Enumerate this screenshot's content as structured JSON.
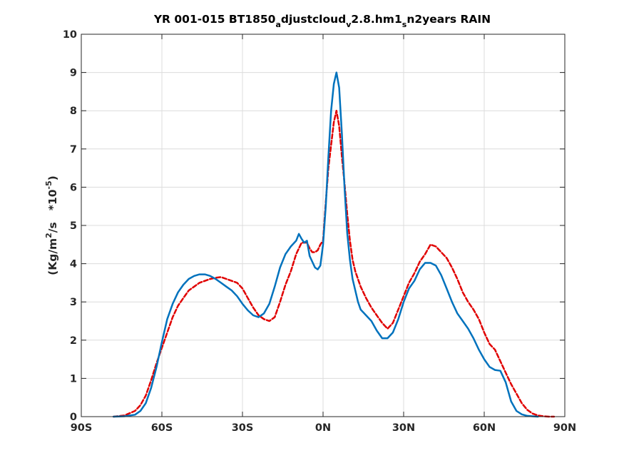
{
  "chart_data": {
    "type": "line",
    "title_parts": {
      "p1": "YR 001-015 BT1850",
      "s1": "a",
      "p2": "djustcloud",
      "s2": "v",
      "p3": "2.8.hm1",
      "s3": "s",
      "p4": "n2years RAIN"
    },
    "ylabel_parts": {
      "p1": "(Kg/m",
      "sup1": "2",
      "p2": "/s   *10",
      "sup2": "-5",
      "p3": ")"
    },
    "xlim": [
      -90,
      90
    ],
    "ylim": [
      0,
      10
    ],
    "grid": true,
    "xticks": [
      -90,
      -60,
      -30,
      0,
      30,
      60,
      90
    ],
    "xtick_labels": [
      "90S",
      "60S",
      "30S",
      "0N",
      "30N",
      "60N",
      "90N"
    ],
    "yticks": [
      0,
      1,
      2,
      3,
      4,
      5,
      6,
      7,
      8,
      9,
      10
    ],
    "ytick_labels": [
      "0",
      "1",
      "2",
      "3",
      "4",
      "5",
      "6",
      "7",
      "8",
      "9",
      "10"
    ],
    "colors": {
      "series1": "#0072BD",
      "series2": "#E00000"
    },
    "series": [
      {
        "line_style": "solid",
        "color": "#0072BD",
        "x": [
          -78,
          -74,
          -70,
          -68,
          -66,
          -64,
          -62,
          -60,
          -58,
          -56,
          -54,
          -52,
          -50,
          -48,
          -46,
          -44,
          -42,
          -40,
          -38,
          -36,
          -34,
          -32,
          -30,
          -28,
          -26,
          -24,
          -22,
          -20,
          -18,
          -16,
          -14,
          -12,
          -10,
          -9,
          -8,
          -7,
          -6,
          -5,
          -4,
          -3,
          -2,
          -1,
          0,
          1,
          2,
          3,
          4,
          5,
          6,
          7,
          8,
          9,
          10,
          11,
          12,
          13,
          14,
          16,
          18,
          20,
          22,
          24,
          26,
          28,
          30,
          32,
          34,
          36,
          38,
          40,
          42,
          44,
          46,
          48,
          50,
          52,
          54,
          56,
          58,
          60,
          62,
          64,
          66,
          68,
          70,
          72,
          74,
          76,
          78,
          80
        ],
        "y": [
          0,
          0.01,
          0.05,
          0.15,
          0.35,
          0.75,
          1.3,
          1.95,
          2.55,
          2.95,
          3.25,
          3.45,
          3.6,
          3.68,
          3.72,
          3.72,
          3.68,
          3.6,
          3.5,
          3.4,
          3.3,
          3.15,
          2.95,
          2.78,
          2.65,
          2.6,
          2.7,
          2.95,
          3.4,
          3.9,
          4.25,
          4.45,
          4.6,
          4.78,
          4.65,
          4.55,
          4.6,
          4.2,
          4.05,
          3.9,
          3.85,
          3.95,
          4.5,
          5.5,
          6.8,
          8.0,
          8.7,
          9.0,
          8.6,
          7.4,
          6.0,
          4.8,
          4.1,
          3.6,
          3.3,
          3.0,
          2.8,
          2.65,
          2.5,
          2.25,
          2.05,
          2.05,
          2.2,
          2.55,
          3.0,
          3.35,
          3.55,
          3.85,
          4.02,
          4.02,
          3.95,
          3.7,
          3.35,
          3.0,
          2.7,
          2.5,
          2.3,
          2.05,
          1.75,
          1.5,
          1.3,
          1.22,
          1.2,
          0.9,
          0.4,
          0.15,
          0.06,
          0.02,
          0.01,
          0
        ],
        "name": ""
      },
      {
        "line_style": "dashed",
        "color": "#E00000",
        "x": [
          -78,
          -74,
          -70,
          -68,
          -66,
          -64,
          -62,
          -60,
          -58,
          -56,
          -54,
          -52,
          -50,
          -48,
          -46,
          -44,
          -42,
          -40,
          -38,
          -36,
          -34,
          -32,
          -30,
          -28,
          -26,
          -24,
          -22,
          -20,
          -18,
          -16,
          -14,
          -12,
          -10,
          -8,
          -6,
          -5,
          -4,
          -3,
          -2,
          -1,
          0,
          1,
          2,
          3,
          4,
          5,
          6,
          7,
          8,
          9,
          10,
          11,
          12,
          14,
          16,
          18,
          20,
          22,
          24,
          26,
          28,
          30,
          32,
          34,
          36,
          38,
          40,
          42,
          44,
          46,
          48,
          50,
          52,
          54,
          56,
          58,
          60,
          62,
          64,
          66,
          68,
          70,
          72,
          74,
          76,
          78,
          80,
          82,
          84,
          86
        ],
        "y": [
          0,
          0.03,
          0.15,
          0.3,
          0.55,
          0.95,
          1.4,
          1.8,
          2.2,
          2.6,
          2.9,
          3.1,
          3.3,
          3.4,
          3.5,
          3.55,
          3.6,
          3.63,
          3.65,
          3.6,
          3.55,
          3.5,
          3.35,
          3.1,
          2.85,
          2.65,
          2.55,
          2.5,
          2.6,
          3.0,
          3.45,
          3.8,
          4.25,
          4.55,
          4.55,
          4.4,
          4.3,
          4.3,
          4.35,
          4.5,
          4.6,
          5.6,
          6.5,
          7.1,
          7.7,
          8.0,
          7.6,
          6.8,
          6.1,
          5.3,
          4.6,
          4.1,
          3.8,
          3.4,
          3.1,
          2.85,
          2.65,
          2.45,
          2.3,
          2.45,
          2.8,
          3.15,
          3.5,
          3.75,
          4.05,
          4.25,
          4.5,
          4.45,
          4.3,
          4.15,
          3.9,
          3.6,
          3.25,
          3.0,
          2.8,
          2.55,
          2.2,
          1.9,
          1.75,
          1.45,
          1.15,
          0.85,
          0.6,
          0.35,
          0.18,
          0.08,
          0.03,
          0.01,
          0,
          0
        ],
        "name": ""
      }
    ]
  }
}
